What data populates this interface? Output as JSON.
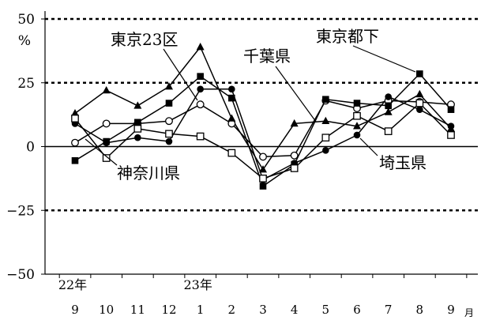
{
  "chart_data": {
    "type": "line",
    "categories": [
      "9",
      "10",
      "11",
      "12",
      "1",
      "2",
      "3",
      "4",
      "5",
      "6",
      "7",
      "8",
      "9"
    ],
    "x_unit_label": "月",
    "year_labels": [
      {
        "label": "22年",
        "index": 0
      },
      {
        "label": "23年",
        "index": 4
      }
    ],
    "y_unit_label": "%",
    "ylim": [
      -50,
      50
    ],
    "yticks": [
      50,
      25,
      0,
      -25,
      -50
    ],
    "ytick_labels": [
      "50",
      "25",
      "0",
      "−25",
      "−50"
    ],
    "gridlines": {
      "dashed": [
        50,
        25,
        -25
      ],
      "solid": [
        0
      ]
    },
    "series": [
      {
        "name": "東京23区",
        "marker": "open-circle",
        "values": [
          1.5,
          9,
          9,
          10,
          16.5,
          9,
          -4,
          -3.5,
          18,
          15,
          18,
          17.5,
          16.5
        ]
      },
      {
        "name": "東京都下",
        "marker": "filled-square",
        "values": [
          -5.5,
          2,
          9.5,
          17,
          27.5,
          19,
          -15.5,
          -7,
          18.5,
          17,
          16,
          28.5,
          14.5
        ]
      },
      {
        "name": "千葉県",
        "marker": "filled-triangle",
        "values": [
          13,
          22,
          16,
          23.5,
          39,
          11,
          -9,
          9,
          10,
          8,
          13.5,
          20.5,
          7
        ]
      },
      {
        "name": "埼玉県",
        "marker": "filled-circle",
        "values": [
          9,
          1.5,
          3.5,
          2,
          22.5,
          22.5,
          -13,
          -6.5,
          -1.5,
          4.5,
          19.5,
          14.5,
          8
        ]
      },
      {
        "name": "神奈川県",
        "marker": "open-square",
        "values": [
          11,
          -4.5,
          7,
          5,
          4,
          -2.5,
          -12.5,
          -8.5,
          3.5,
          12,
          6,
          17,
          4.5
        ]
      }
    ]
  }
}
